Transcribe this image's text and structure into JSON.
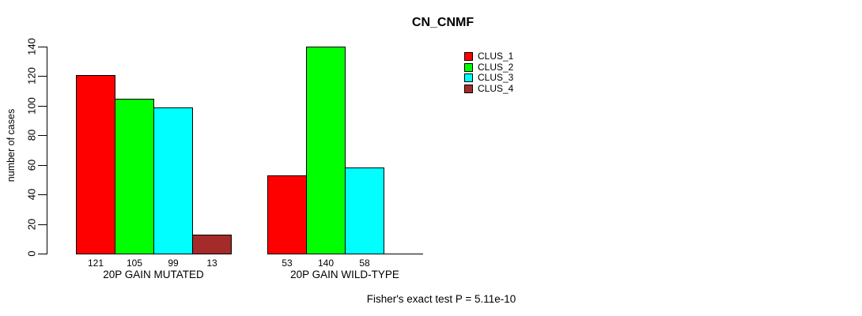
{
  "chart_data": {
    "type": "bar",
    "title": "CN_CNMF",
    "ylabel": "number of cases",
    "xlabel": "",
    "ylim": [
      0,
      140
    ],
    "yticks": [
      0,
      20,
      40,
      60,
      80,
      100,
      120,
      140
    ],
    "grid": false,
    "legend_position": "top-right",
    "categories": [
      "20P GAIN MUTATED",
      "20P GAIN WILD-TYPE"
    ],
    "series": [
      {
        "name": "CLUS_1",
        "color": "#ff0000",
        "values": [
          121,
          53
        ]
      },
      {
        "name": "CLUS_2",
        "color": "#00ff00",
        "values": [
          105,
          140
        ]
      },
      {
        "name": "CLUS_3",
        "color": "#00ffff",
        "values": [
          99,
          58
        ]
      },
      {
        "name": "CLUS_4",
        "color": "#a52a2a",
        "values": [
          13,
          0
        ]
      }
    ],
    "bar_value_labels": {
      "20P GAIN MUTATED": [
        121,
        105,
        99,
        13
      ],
      "20P GAIN WILD-TYPE": [
        53,
        140,
        58
      ]
    },
    "zero_bars_unlabeled": true,
    "annotation": "Fisher's exact test P = 5.11e-10",
    "axis_color": "#000000",
    "text_color": "#000000",
    "background_color": "#ffffff"
  }
}
